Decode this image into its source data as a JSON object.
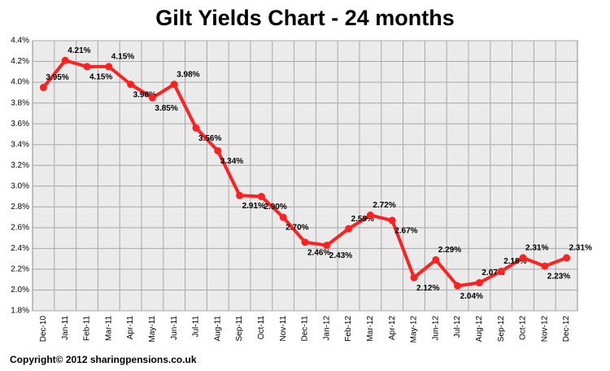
{
  "chart_data": {
    "type": "line",
    "title": "Gilt Yields Chart - 24 months",
    "categories": [
      "Dec-10",
      "Jan-11",
      "Feb-11",
      "Mar-11",
      "Apr-11",
      "May-11",
      "Jun-11",
      "Jul-11",
      "Aug-11",
      "Sep-11",
      "Oct-11",
      "Nov-11",
      "Dec-11",
      "Jan-12",
      "Feb-12",
      "Mar-12",
      "Apr-12",
      "May-12",
      "Jun-12",
      "Jul-12",
      "Aug-12",
      "Sep-12",
      "Oct-12",
      "Nov-12",
      "Dec-12"
    ],
    "values": [
      3.95,
      4.21,
      4.15,
      4.15,
      3.98,
      3.85,
      3.98,
      3.56,
      3.34,
      2.91,
      2.9,
      2.7,
      2.46,
      2.43,
      2.59,
      2.72,
      2.67,
      2.12,
      2.29,
      2.04,
      2.07,
      2.18,
      2.31,
      2.23,
      2.31
    ],
    "value_labels": [
      "3.95%",
      "4.21%",
      "4.15%",
      "4.15%",
      "3.98%",
      "3.85%",
      "3.98%",
      "3.56%",
      "3.34%",
      "2.91%",
      "2.90%",
      "2.70%",
      "2.46%",
      "2.43%",
      "2.59%",
      "2.72%",
      "2.67%",
      "2.12%",
      "2.29%",
      "2.04%",
      "2.07%",
      "2.18%",
      "2.31%",
      "2.23%",
      "2.31%"
    ],
    "color": "#ff2020",
    "ylim": [
      1.8,
      4.4
    ],
    "yticks": [
      {
        "value": 1.8,
        "label": "1.8%"
      },
      {
        "value": 2.0,
        "label": "2.0%"
      },
      {
        "value": 2.2,
        "label": "2.2%"
      },
      {
        "value": 2.4,
        "label": "2.4%"
      },
      {
        "value": 2.6,
        "label": "2.6%"
      },
      {
        "value": 2.8,
        "label": "2.8%"
      },
      {
        "value": 3.0,
        "label": "3.0%"
      },
      {
        "value": 3.2,
        "label": "3.2%"
      },
      {
        "value": 3.4,
        "label": "3.4%"
      },
      {
        "value": 3.6,
        "label": "3.6%"
      },
      {
        "value": 3.8,
        "label": "3.8%"
      },
      {
        "value": 4.0,
        "label": "4.0%"
      },
      {
        "value": 4.2,
        "label": "4.2%"
      },
      {
        "value": 4.4,
        "label": "4.4%"
      }
    ],
    "grid": true,
    "footer": "Copyright© 2012 sharingpensions.co.uk"
  }
}
